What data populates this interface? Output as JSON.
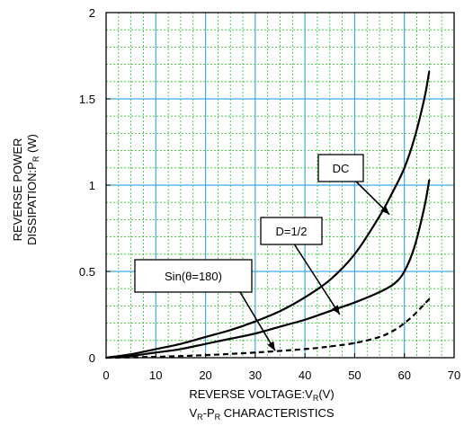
{
  "chart_data": {
    "type": "line",
    "xlabel": {
      "main": "REVERSE VOLTAGE:V",
      "sub": "R",
      "tail": "(V)"
    },
    "ylabel": {
      "line1": "REVERSE POWER",
      "line2_main": "DISSIPATION:P",
      "line2_sub": "R",
      "line2_tail": " (W)"
    },
    "caption": {
      "a": "V",
      "a_sub": "R",
      "b": "-P",
      "b_sub": "R",
      "c": " CHARACTERISTICS"
    },
    "xlim": [
      0,
      70
    ],
    "ylim": [
      0,
      2
    ],
    "x_ticks": [
      0,
      10,
      20,
      30,
      40,
      50,
      60,
      70
    ],
    "y_ticks": [
      0,
      0.5,
      1,
      1.5,
      2
    ],
    "x_tick_labels": [
      "0",
      "10",
      "20",
      "30",
      "40",
      "50",
      "60",
      "70"
    ],
    "y_tick_labels": [
      "0",
      "0.5",
      "1",
      "1.5",
      "2"
    ],
    "grid": {
      "major": true,
      "minor": true
    },
    "colors": {
      "grid_major": "#3da9e8",
      "grid_minor": "#22c022",
      "curve": "#000000"
    },
    "series": [
      {
        "name": "DC",
        "style": "solid",
        "x": [
          0,
          5,
          10,
          15,
          20,
          25,
          30,
          35,
          40,
          45,
          50,
          55,
          58,
          60,
          62,
          64,
          65
        ],
        "y": [
          0,
          0.02,
          0.05,
          0.08,
          0.12,
          0.16,
          0.21,
          0.27,
          0.35,
          0.45,
          0.6,
          0.82,
          0.98,
          1.1,
          1.27,
          1.5,
          1.66
        ]
      },
      {
        "name": "D=1/2",
        "style": "solid",
        "x": [
          0,
          5,
          10,
          15,
          20,
          25,
          30,
          35,
          40,
          45,
          50,
          55,
          58,
          60,
          62,
          64,
          65
        ],
        "y": [
          0,
          0.01,
          0.03,
          0.05,
          0.08,
          0.11,
          0.14,
          0.18,
          0.22,
          0.27,
          0.32,
          0.38,
          0.43,
          0.5,
          0.64,
          0.87,
          1.03
        ]
      },
      {
        "name": "Sin(θ=180)",
        "style": "dashed",
        "x": [
          0,
          10,
          20,
          30,
          40,
          45,
          50,
          55,
          58,
          60,
          62,
          64,
          65
        ],
        "y": [
          0,
          0.005,
          0.015,
          0.03,
          0.05,
          0.065,
          0.085,
          0.12,
          0.16,
          0.2,
          0.25,
          0.31,
          0.34
        ]
      }
    ],
    "annotations": [
      {
        "label": "DC",
        "series": "DC",
        "arrow_to": [
          57,
          0.83
        ]
      },
      {
        "label": "D=1/2",
        "series": "D=1/2",
        "arrow_to": [
          47,
          0.25
        ]
      },
      {
        "label": "Sin(θ=180)",
        "series": "Sin(θ=180)",
        "arrow_to": [
          34,
          0.04
        ]
      }
    ]
  }
}
